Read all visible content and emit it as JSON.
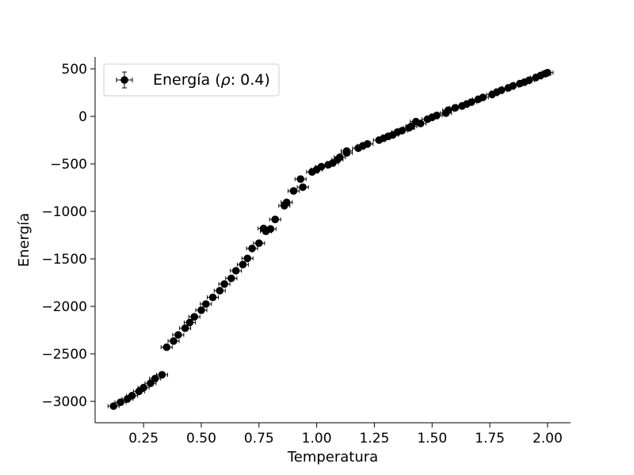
{
  "chart_data": {
    "type": "scatter",
    "xlabel": "Temperatura",
    "ylabel": "Energía",
    "xlim": [
      0.04,
      2.1
    ],
    "ylim": [
      -3225,
      625
    ],
    "xticks": [
      0.25,
      0.5,
      0.75,
      1.0,
      1.25,
      1.5,
      1.75,
      2.0
    ],
    "xtick_labels": [
      "0.25",
      "0.50",
      "0.75",
      "1.00",
      "1.25",
      "1.50",
      "1.75",
      "2.00"
    ],
    "yticks": [
      -3000,
      -2500,
      -2000,
      -1500,
      -1000,
      -500,
      0,
      500
    ],
    "ytick_labels": [
      "−3000",
      "−2500",
      "−2000",
      "−1500",
      "−1000",
      "−500",
      "0",
      "500"
    ],
    "grid": false,
    "legend_position": "top-left",
    "series": [
      {
        "name": "Energía (ρ: 0.4)",
        "legend_prefix": "Energía (",
        "legend_symbol": "ρ",
        "legend_suffix": ": 0.4)",
        "color": "#000000",
        "marker": "circle",
        "error_bars": true,
        "points": [
          [
            0.12,
            -3050
          ],
          [
            0.15,
            -3010
          ],
          [
            0.18,
            -2975
          ],
          [
            0.2,
            -2940
          ],
          [
            0.23,
            -2895
          ],
          [
            0.25,
            -2855
          ],
          [
            0.28,
            -2810
          ],
          [
            0.3,
            -2760
          ],
          [
            0.33,
            -2720
          ],
          [
            0.35,
            -2430
          ],
          [
            0.38,
            -2365
          ],
          [
            0.4,
            -2300
          ],
          [
            0.43,
            -2230
          ],
          [
            0.45,
            -2170
          ],
          [
            0.47,
            -2110
          ],
          [
            0.5,
            -2040
          ],
          [
            0.52,
            -1975
          ],
          [
            0.55,
            -1905
          ],
          [
            0.58,
            -1835
          ],
          [
            0.6,
            -1765
          ],
          [
            0.63,
            -1705
          ],
          [
            0.65,
            -1625
          ],
          [
            0.68,
            -1560
          ],
          [
            0.7,
            -1495
          ],
          [
            0.72,
            -1390
          ],
          [
            0.75,
            -1335
          ],
          [
            0.77,
            -1180
          ],
          [
            0.78,
            -1210
          ],
          [
            0.8,
            -1185
          ],
          [
            0.82,
            -1085
          ],
          [
            0.86,
            -940
          ],
          [
            0.87,
            -905
          ],
          [
            0.9,
            -785
          ],
          [
            0.93,
            -660
          ],
          [
            0.94,
            -745
          ],
          [
            0.98,
            -585
          ],
          [
            1.0,
            -560
          ],
          [
            1.02,
            -530
          ],
          [
            1.05,
            -510
          ],
          [
            1.07,
            -490
          ],
          [
            1.09,
            -455
          ],
          [
            1.1,
            -430
          ],
          [
            1.13,
            -385
          ],
          [
            1.13,
            -365
          ],
          [
            1.18,
            -335
          ],
          [
            1.2,
            -310
          ],
          [
            1.22,
            -290
          ],
          [
            1.27,
            -250
          ],
          [
            1.29,
            -230
          ],
          [
            1.31,
            -210
          ],
          [
            1.33,
            -195
          ],
          [
            1.35,
            -165
          ],
          [
            1.37,
            -150
          ],
          [
            1.4,
            -120
          ],
          [
            1.41,
            -105
          ],
          [
            1.43,
            -55
          ],
          [
            1.45,
            -75
          ],
          [
            1.48,
            -30
          ],
          [
            1.5,
            -10
          ],
          [
            1.52,
            10
          ],
          [
            1.56,
            35
          ],
          [
            1.57,
            65
          ],
          [
            1.6,
            90
          ],
          [
            1.63,
            110
          ],
          [
            1.65,
            130
          ],
          [
            1.67,
            150
          ],
          [
            1.7,
            180
          ],
          [
            1.72,
            200
          ],
          [
            1.76,
            230
          ],
          [
            1.78,
            255
          ],
          [
            1.8,
            275
          ],
          [
            1.83,
            300
          ],
          [
            1.85,
            320
          ],
          [
            1.88,
            345
          ],
          [
            1.9,
            360
          ],
          [
            1.92,
            380
          ],
          [
            1.95,
            410
          ],
          [
            1.97,
            430
          ],
          [
            1.99,
            450
          ],
          [
            2.0,
            460
          ]
        ]
      }
    ]
  }
}
